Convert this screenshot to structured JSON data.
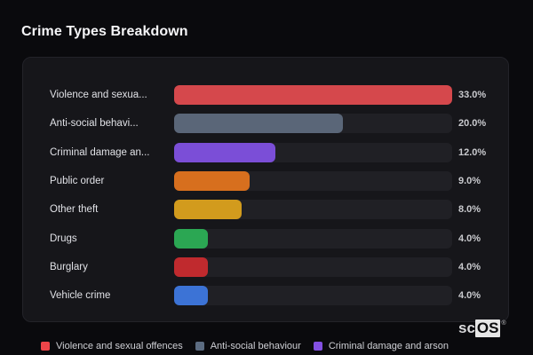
{
  "header": {
    "title": "Crime Types Breakdown"
  },
  "colors": {
    "page_bg": "#0a0a0d",
    "panel_bg": "#16161a",
    "track": "#202025",
    "title_text": "#f5f5f7",
    "label_text": "#e0e1e6",
    "value_text": "#c9cace"
  },
  "chart_data": {
    "type": "bar",
    "orientation": "horizontal",
    "title": "Crime Types Breakdown",
    "xlim": [
      0,
      33
    ],
    "max_value": 33,
    "grid": false,
    "legend_position": "bottom",
    "categories": [
      "Violence and sexual offences",
      "Anti-social behaviour",
      "Criminal damage and arson",
      "Public order",
      "Other theft",
      "Drugs",
      "Burglary",
      "Vehicle crime"
    ],
    "values": [
      33.0,
      20.0,
      12.0,
      9.0,
      8.0,
      4.0,
      4.0,
      4.0
    ],
    "rows": [
      {
        "label": "Violence and sexua...",
        "value": 33.0,
        "value_label": "33.0%",
        "color": "#d5484c"
      },
      {
        "label": "Anti-social behavi...",
        "value": 20.0,
        "value_label": "20.0%",
        "color": "#5a6678"
      },
      {
        "label": "Criminal damage an...",
        "value": 12.0,
        "value_label": "12.0%",
        "color": "#7b4ed7"
      },
      {
        "label": "Public order",
        "value": 9.0,
        "value_label": "9.0%",
        "color": "#d76f1e"
      },
      {
        "label": "Other theft",
        "value": 8.0,
        "value_label": "8.0%",
        "color": "#d29b1d"
      },
      {
        "label": "Drugs",
        "value": 4.0,
        "value_label": "4.0%",
        "color": "#2ba753"
      },
      {
        "label": "Burglary",
        "value": 4.0,
        "value_label": "4.0%",
        "color": "#c02a2e"
      },
      {
        "label": "Vehicle crime",
        "value": 4.0,
        "value_label": "4.0%",
        "color": "#3c73d6"
      }
    ]
  },
  "legend": {
    "items": [
      {
        "label": "Violence and sexual offences",
        "color": "#ec4549"
      },
      {
        "label": "Anti-social behaviour",
        "color": "#5c6c81"
      },
      {
        "label": "Criminal damage and arson",
        "color": "#8350e2"
      }
    ]
  },
  "branding": {
    "prefix": "sc",
    "suffix": "OS",
    "registered": "®"
  }
}
